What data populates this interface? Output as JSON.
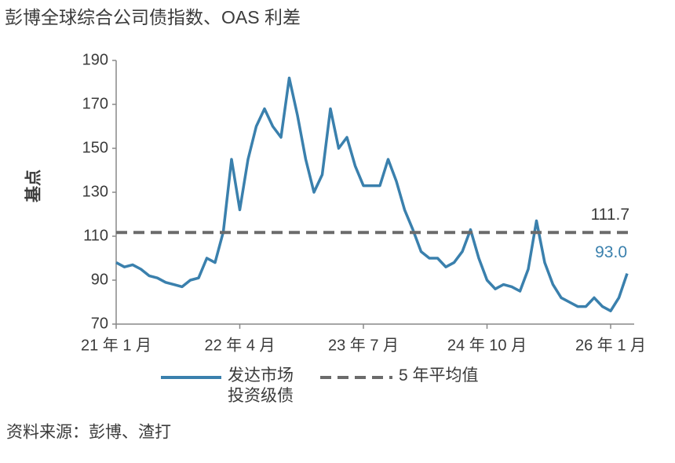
{
  "chart_data": {
    "type": "line",
    "title": "彭博全球综合公司债指数、OAS 利差",
    "y_label": "基点",
    "source": "资料来源：彭博、渣打",
    "categories": [
      "21 年 1 月",
      null,
      null,
      null,
      null,
      null,
      null,
      null,
      null,
      null,
      null,
      null,
      null,
      null,
      null,
      "22 年 4 月",
      null,
      null,
      null,
      null,
      null,
      null,
      null,
      null,
      null,
      null,
      null,
      null,
      null,
      null,
      "23 年 7 月",
      null,
      null,
      null,
      null,
      null,
      null,
      null,
      null,
      null,
      null,
      null,
      null,
      null,
      null,
      "24 年 10 月",
      null,
      null,
      null,
      null,
      null,
      null,
      null,
      null,
      null,
      null,
      null,
      null,
      null,
      null,
      "26 年 1 月",
      null,
      null
    ],
    "series": [
      {
        "name": "发达市场投资级债",
        "color": "#3a80ad",
        "values": [
          98,
          96,
          97,
          95,
          92,
          91,
          89,
          88,
          87,
          90,
          91,
          100,
          98,
          112,
          145,
          122,
          145,
          160,
          168,
          160,
          155,
          182,
          165,
          145,
          130,
          138,
          168,
          150,
          155,
          142,
          133,
          133,
          133,
          145,
          135,
          122,
          113,
          103,
          100,
          100,
          96,
          98,
          103,
          113,
          100,
          90,
          86,
          88,
          87,
          85,
          95,
          117,
          98,
          88,
          82,
          80,
          78,
          78,
          82,
          78,
          76,
          82,
          93
        ],
        "value_labels": [
          null,
          null,
          null,
          null,
          null,
          null,
          null,
          null,
          null,
          null,
          null,
          null,
          null,
          null,
          null,
          null,
          null,
          null,
          null,
          null,
          null,
          null,
          null,
          null,
          null,
          null,
          null,
          null,
          null,
          null,
          null,
          null,
          null,
          null,
          null,
          null,
          null,
          null,
          null,
          null,
          null,
          null,
          null,
          null,
          null,
          null,
          null,
          null,
          null,
          null,
          null,
          null,
          null,
          null,
          null,
          null,
          null,
          null,
          null,
          null,
          null,
          null,
          "93.0"
        ]
      },
      {
        "name": "5 年平均值",
        "color": "#6b6b6b",
        "dashed": true,
        "value": 111.7
      }
    ],
    "ylim": [
      70,
      190
    ],
    "yticks": [
      70,
      90,
      110,
      130,
      150,
      170,
      190
    ]
  }
}
